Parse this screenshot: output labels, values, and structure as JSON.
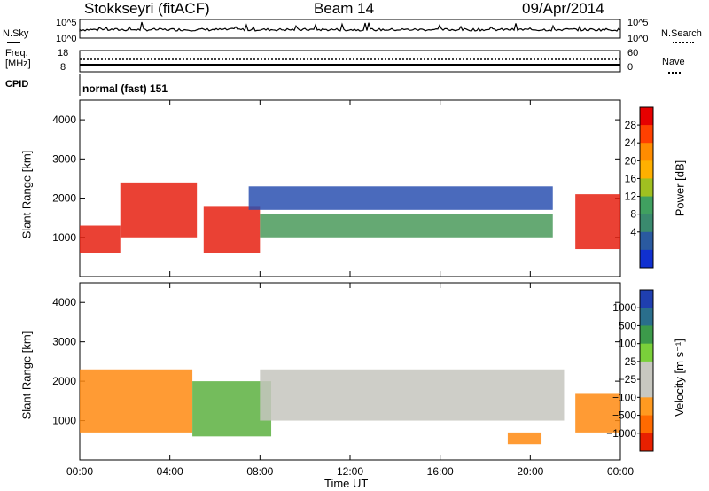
{
  "header": {
    "site": "Stokkseyri (fitACF)",
    "beam": "Beam 14",
    "date": "09/Apr/2014"
  },
  "top_panels": {
    "nsky_label": "N.Sky",
    "nsky_ticks": [
      "10^5",
      "10^0"
    ],
    "nsearch_label": "N.Search",
    "nsearch_ticks": [
      "10^5",
      "10^0"
    ],
    "freq_label_1": "Freq.",
    "freq_label_2": "[MHz]",
    "freq_ticks": [
      "18",
      "8"
    ],
    "nave_label": "Nave",
    "nave_ticks": [
      "60",
      "0"
    ],
    "cpid_label": "CPID",
    "cpid_value": "normal (fast) 151"
  },
  "chart_data": [
    {
      "type": "heatmap",
      "name": "power",
      "ylabel": "Slant Range [km]",
      "yticks": [
        "1000",
        "2000",
        "3000",
        "4000"
      ],
      "ylim": [
        0,
        4500
      ],
      "colorbar_label": "Power [dB]",
      "colorbar_ticks": [
        "28",
        "24",
        "20",
        "16",
        "12",
        "8",
        "4"
      ],
      "colorbar_colors": [
        "#e60000",
        "#ff4000",
        "#ff8c00",
        "#ffb000",
        "#a0c020",
        "#40a060",
        "#3a8a6e",
        "#2a5aa0",
        "#1030d0"
      ],
      "approx_regions": [
        {
          "t_start": 0.0,
          "t_end": 1.8,
          "r_min": 600,
          "r_max": 1300,
          "level": "high"
        },
        {
          "t_start": 1.8,
          "t_end": 5.2,
          "r_min": 1000,
          "r_max": 2400,
          "level": "high"
        },
        {
          "t_start": 5.5,
          "t_end": 8.0,
          "r_min": 600,
          "r_max": 1800,
          "level": "high"
        },
        {
          "t_start": 8.0,
          "t_end": 21.0,
          "r_min": 1000,
          "r_max": 1600,
          "level": "medium"
        },
        {
          "t_start": 7.5,
          "t_end": 21.0,
          "r_min": 1700,
          "r_max": 2300,
          "level": "low"
        },
        {
          "t_start": 22.0,
          "t_end": 24.0,
          "r_min": 700,
          "r_max": 2100,
          "level": "high"
        }
      ]
    },
    {
      "type": "heatmap",
      "name": "velocity",
      "ylabel": "Slant Range [km]",
      "yticks": [
        "1000",
        "2000",
        "3000",
        "4000"
      ],
      "ylim": [
        0,
        4500
      ],
      "colorbar_label": "Velocity [m s⁻¹]",
      "colorbar_ticks": [
        "1000",
        "500",
        "100",
        "25",
        "−25",
        "−100",
        "−500",
        "−1000"
      ],
      "colorbar_colors": [
        "#1f3fb0",
        "#2a6e8c",
        "#3c9a4a",
        "#7ad03a",
        "#c8c8c0",
        "#c8c8c0",
        "#ff9a20",
        "#ff6a00",
        "#e82000"
      ],
      "approx_regions": [
        {
          "t_start": 0.0,
          "t_end": 5.0,
          "r_min": 700,
          "r_max": 2300,
          "level": "negative"
        },
        {
          "t_start": 5.0,
          "t_end": 8.5,
          "r_min": 600,
          "r_max": 2000,
          "level": "positive"
        },
        {
          "t_start": 8.0,
          "t_end": 21.5,
          "r_min": 1000,
          "r_max": 2300,
          "level": "near-zero"
        },
        {
          "t_start": 19.0,
          "t_end": 20.5,
          "r_min": 400,
          "r_max": 700,
          "level": "negative"
        },
        {
          "t_start": 22.0,
          "t_end": 24.0,
          "r_min": 700,
          "r_max": 1700,
          "level": "negative"
        }
      ]
    }
  ],
  "x_axis": {
    "ticks": [
      "00:00",
      "04:00",
      "08:00",
      "12:00",
      "16:00",
      "20:00",
      "00:00"
    ],
    "label": "Time UT"
  }
}
